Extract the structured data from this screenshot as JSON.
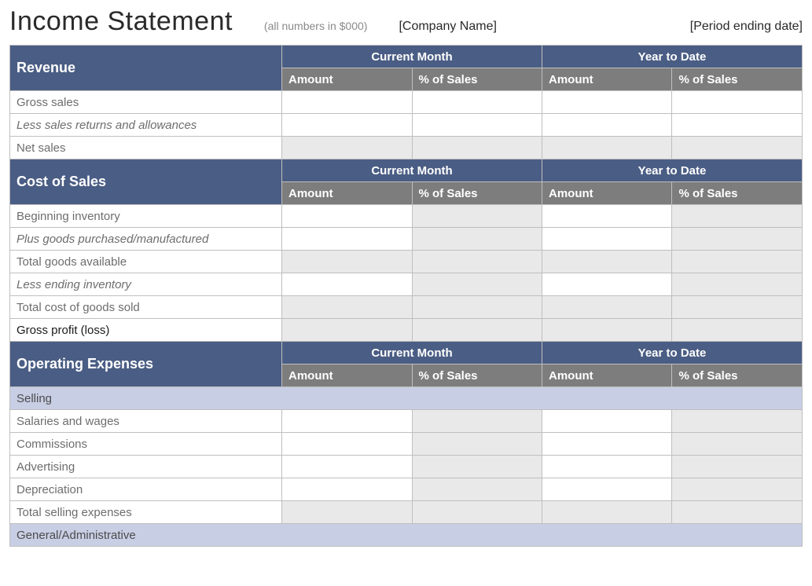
{
  "header": {
    "title": "Income Statement",
    "subtitle": "(all numbers in $000)",
    "company_placeholder": "[Company Name]",
    "period_placeholder": "[Period ending date]"
  },
  "colors": {
    "section_bg": "#4a5d84",
    "subhead_bg": "#7d7d7d",
    "shade_bg": "#e9e9e9",
    "subband_bg": "#c8cee4",
    "border": "#bfbfbf",
    "label_text": "#6d6d6d"
  },
  "periods": {
    "current": "Current Month",
    "ytd": "Year to Date"
  },
  "subcols": {
    "amount": "Amount",
    "pct": "% of Sales"
  },
  "sections": {
    "revenue": {
      "label": "Revenue",
      "rows": {
        "gross_sales": "Gross sales",
        "less_returns": "Less sales returns and allowances",
        "net_sales": "Net sales"
      }
    },
    "cost_of_sales": {
      "label": "Cost of Sales",
      "rows": {
        "begin_inv": "Beginning inventory",
        "plus_goods": "Plus goods purchased/manufactured",
        "total_goods": "Total goods available",
        "less_end_inv": "Less ending inventory",
        "total_cogs": "Total cost of goods sold",
        "gross_profit": "Gross profit (loss)"
      }
    },
    "op_exp": {
      "label": "Operating Expenses",
      "subgroups": {
        "selling": {
          "label": "Selling",
          "rows": {
            "salaries": "Salaries and wages",
            "commissions": "Commissions",
            "advertising": "Advertising",
            "depreciation": "Depreciation",
            "total_selling": "Total selling expenses"
          }
        },
        "general_admin": {
          "label": "General/Administrative"
        }
      }
    }
  }
}
